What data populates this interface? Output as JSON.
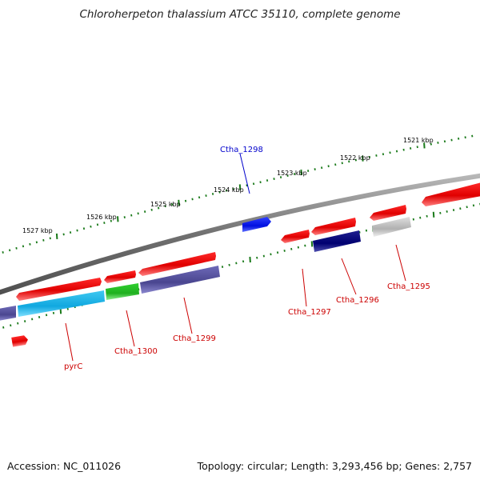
{
  "title": "Chloroherpeton thalassium ATCC 35110, complete genome",
  "footer": {
    "accession": "Accession: NC_011026",
    "summary": "Topology: circular; Length: 3,293,456 bp; Genes: 2,757"
  },
  "colors": {
    "backbone": "#808080",
    "tick_outer": "#1a7a1a",
    "tick_inner": "#1a7a1a",
    "label_default": "#cc0000",
    "label_highlight": "#0000cc"
  },
  "scale": {
    "labels": [
      "1527 kbp",
      "1526 kbp",
      "1525 kbp",
      "1524 kbp",
      "1523 kbp",
      "1522 kbp",
      "1521 kbp"
    ]
  },
  "genes": [
    {
      "label": "pyrC",
      "color": "#cc0000"
    },
    {
      "label": "Ctha_1300",
      "color": "#cc0000"
    },
    {
      "label": "Ctha_1299",
      "color": "#cc0000"
    },
    {
      "label": "Ctha_1298",
      "color": "#0000cc"
    },
    {
      "label": "Ctha_1297",
      "color": "#cc0000"
    },
    {
      "label": "Ctha_1296",
      "color": "#cc0000"
    },
    {
      "label": "Ctha_1295",
      "color": "#cc0000"
    }
  ]
}
